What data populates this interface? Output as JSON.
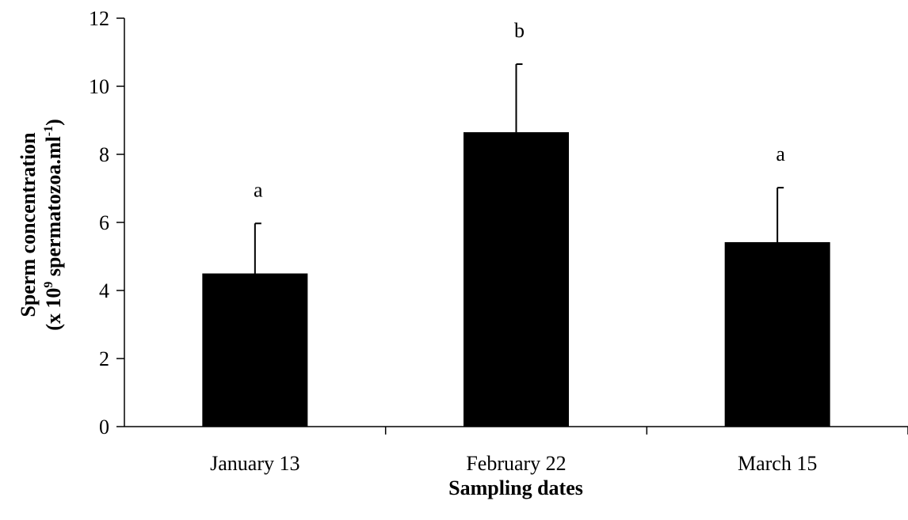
{
  "chart_data": {
    "type": "bar",
    "categories": [
      "January 13",
      "February 22",
      "March 15"
    ],
    "values": [
      4.5,
      8.65,
      5.42
    ],
    "errors": [
      1.47,
      2.0,
      1.6
    ],
    "significance_labels": [
      "a",
      "b",
      "a"
    ],
    "xlabel": "Sampling dates",
    "ylabel": {
      "line1": "Sperm concentration",
      "line2_prefix": "(x 10",
      "line2_exp": "9",
      "line2_mid": " spermatozoa.ml",
      "line2_exp2": "-1",
      "line2_suffix": ")"
    },
    "ylim": [
      0,
      12
    ],
    "yticks": [
      "0",
      "2",
      "4",
      "6",
      "8",
      "10",
      "12"
    ],
    "bar_color": "#000000",
    "grid": false
  }
}
